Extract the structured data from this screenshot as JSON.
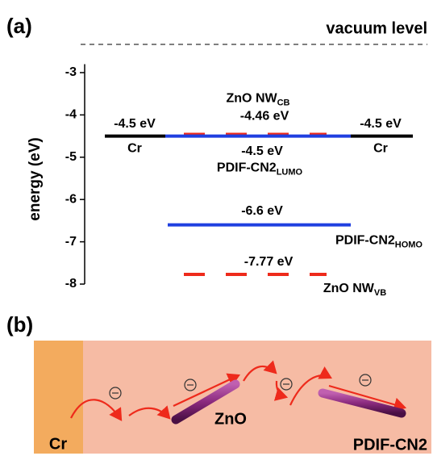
{
  "chart_data": {
    "type": "levels",
    "panel_label": "(a)",
    "annotation": "vacuum level",
    "y_label": "energy (eV)",
    "ylim": [
      -8,
      -2.8
    ],
    "yticks": [
      -3,
      -4,
      -5,
      -6,
      -7,
      -8
    ],
    "series": [
      {
        "name": "Cr",
        "color": "#000000",
        "dashed": false,
        "values": [
          -4.5
        ],
        "value_labels": [
          "-4.5 eV"
        ]
      },
      {
        "name": "Cr",
        "color": "#000000",
        "dashed": false,
        "values": [
          -4.5
        ],
        "value_labels": [
          "-4.5 eV"
        ]
      },
      {
        "name": "ZnO NW",
        "subscript": "CB",
        "color": "#ee2a1b",
        "dashed": true,
        "values": [
          -4.46
        ],
        "value_labels": [
          "-4.46 eV"
        ]
      },
      {
        "name": "PDIF-CN2",
        "subscript": "LUMO",
        "color": "#1f3fe0",
        "dashed": false,
        "values": [
          -4.5
        ],
        "value_labels": [
          "-4.5 eV"
        ]
      },
      {
        "name": "PDIF-CN2",
        "subscript": "HOMO",
        "color": "#1f3fe0",
        "dashed": false,
        "values": [
          -6.6
        ],
        "value_labels": [
          "-6.6 eV"
        ]
      },
      {
        "name": "ZnO NW",
        "subscript": "VB",
        "color": "#ee2a1b",
        "dashed": true,
        "values": [
          -7.77
        ],
        "value_labels": [
          "-7.77 eV"
        ]
      }
    ]
  },
  "schematic": {
    "panel_label": "(b)",
    "labels": [
      "Cr",
      "ZnO",
      "PDIF-CN2"
    ]
  }
}
